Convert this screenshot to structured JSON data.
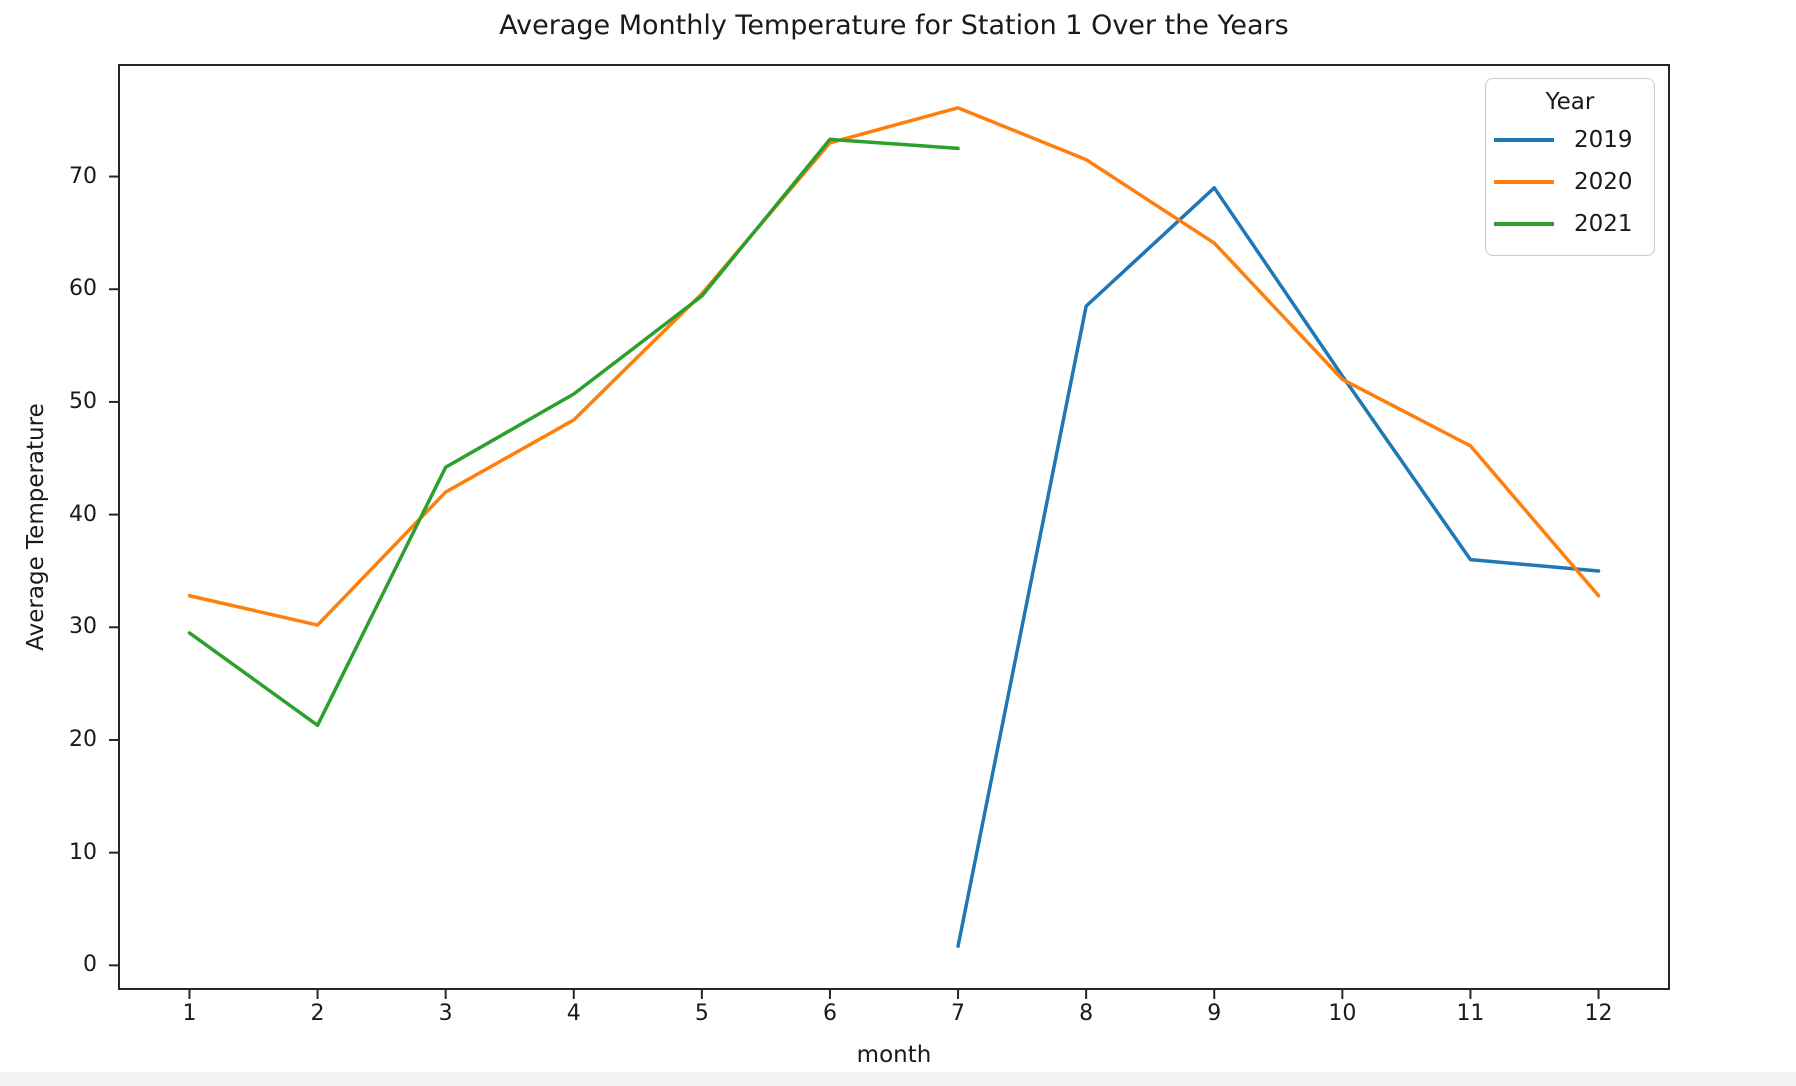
{
  "chart_data": {
    "type": "line",
    "title": "Average Monthly Temperature for Station 1 Over the Years",
    "xlabel": "month",
    "ylabel": "Average Temperature",
    "legend_title": "Year",
    "legend_position": "upper right",
    "grid": false,
    "xlim": [
      0.45,
      12.55
    ],
    "ylim": [
      -2.1,
      79.9
    ],
    "xticks": [
      1,
      2,
      3,
      4,
      5,
      6,
      7,
      8,
      9,
      10,
      11,
      12
    ],
    "yticks": [
      0,
      10,
      20,
      30,
      40,
      50,
      60,
      70
    ],
    "axis_color": "#262626",
    "series": [
      {
        "name": "2019",
        "color": "#1f77b4",
        "x": [
          7,
          8,
          9,
          10,
          11,
          12
        ],
        "values": [
          1.7,
          58.5,
          69.0,
          52.3,
          36.0,
          35.0
        ]
      },
      {
        "name": "2020",
        "color": "#ff7f0e",
        "x": [
          1,
          2,
          3,
          4,
          5,
          6,
          7,
          8,
          9,
          10,
          11,
          12
        ],
        "values": [
          32.8,
          30.2,
          42.0,
          48.4,
          59.6,
          73.0,
          76.1,
          71.5,
          64.1,
          52.0,
          46.1,
          32.8
        ]
      },
      {
        "name": "2021",
        "color": "#2ca02c",
        "x": [
          1,
          2,
          3,
          4,
          5,
          6,
          7
        ],
        "values": [
          29.5,
          21.3,
          44.2,
          50.7,
          59.4,
          73.3,
          72.5
        ]
      }
    ]
  }
}
